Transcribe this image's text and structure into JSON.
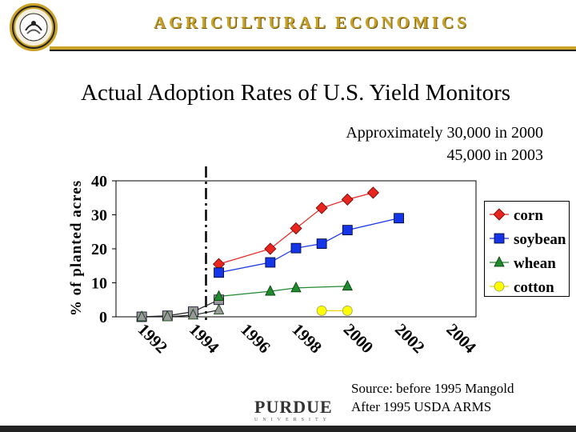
{
  "header": {
    "band_title": "AGRICULTURAL ECONOMICS",
    "logo_icon": "university-seal-icon",
    "accent_color": "#c9a227"
  },
  "slide": {
    "title": "Actual Adoption Rates of U.S. Yield Monitors",
    "note_line1": "Approximately 30,000 in 2000",
    "note_line2": "45,000 in 2003",
    "source_line1": "Source:  before 1995 Mangold",
    "source_line2": "After 1995 USDA ARMS",
    "footer_logo_name": "PURDUE",
    "footer_logo_sub": "UNIVERSITY"
  },
  "chart_data": {
    "type": "line",
    "ylabel": "% of planted acres",
    "ylim": [
      0,
      40
    ],
    "yticks": [
      0,
      10,
      20,
      30,
      40
    ],
    "xlim": [
      1991,
      2005
    ],
    "xticks": [
      1992,
      1994,
      1996,
      1998,
      2000,
      2002,
      2004
    ],
    "grid": false,
    "legend_position": "right",
    "divider_year": 1994.5,
    "series": [
      {
        "name": "corn",
        "marker": "diamond",
        "color": "#e8251f",
        "points": [
          [
            1997,
            20
          ],
          [
            1998,
            26
          ],
          [
            1999,
            32
          ],
          [
            2000,
            34.5
          ],
          [
            2001,
            36.5
          ]
        ]
      },
      {
        "name": "soybean",
        "marker": "square",
        "color": "#1535e8",
        "points": [
          [
            1997,
            16
          ],
          [
            1998,
            20.2
          ],
          [
            1999,
            21.5
          ],
          [
            2000,
            25.5
          ],
          [
            2002,
            29
          ]
        ]
      },
      {
        "name": "whean",
        "marker": "triangle",
        "color": "#1f8a2e",
        "points": [
          [
            1997,
            7.5
          ],
          [
            1998,
            8.5
          ],
          [
            2000,
            9
          ]
        ]
      },
      {
        "name": "cotton",
        "marker": "circle",
        "color": "#ffff00",
        "points": [
          [
            1999,
            1.8
          ],
          [
            2000,
            1.8
          ]
        ]
      }
    ],
    "pre_1995": {
      "label": "before 1995 Mangold",
      "corn": [
        [
          1995,
          15.5
        ]
      ],
      "soybean": [
        [
          1995,
          13
        ]
      ],
      "whean": [
        [
          1995,
          6
        ]
      ],
      "gray_squares": [
        [
          1992,
          0
        ],
        [
          1993,
          0.3
        ],
        [
          1994,
          1.5
        ],
        [
          1995,
          5
        ]
      ],
      "gray_triangles": [
        [
          1992,
          0
        ],
        [
          1993,
          0
        ],
        [
          1994,
          0.5
        ],
        [
          1995,
          2
        ]
      ]
    }
  }
}
